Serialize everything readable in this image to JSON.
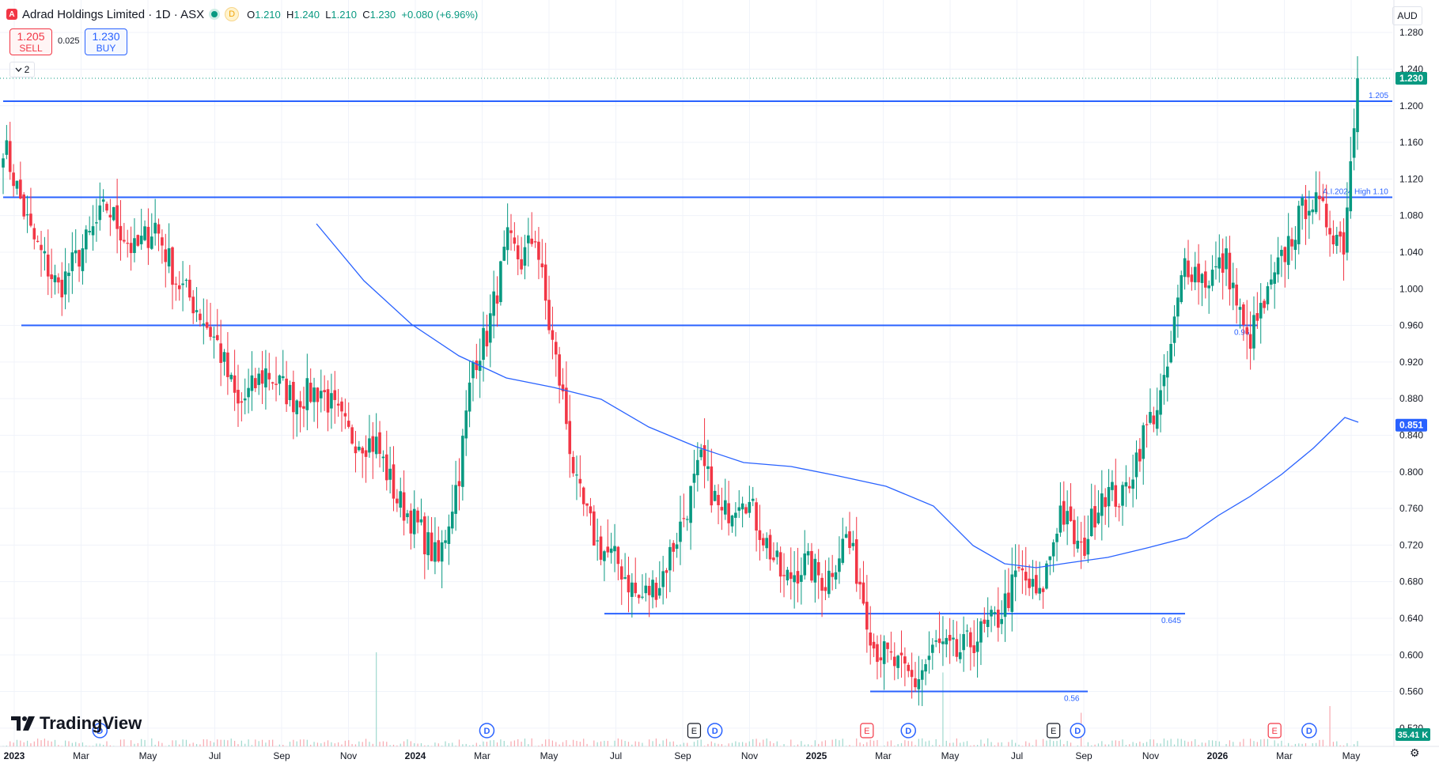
{
  "header": {
    "logo_letter": "A",
    "title": "Adrad Holdings Limited · 1D · ASX",
    "d_badge": "D",
    "open_label": "O",
    "open": "1.210",
    "high_label": "H",
    "high": "1.240",
    "low_label": "L",
    "low": "1.210",
    "close_label": "C",
    "close": "1.230",
    "change": "+0.080 (+6.96%)"
  },
  "trade": {
    "sell_price": "1.205",
    "sell_label": "SELL",
    "spread": "0.025",
    "buy_price": "1.230",
    "buy_label": "BUY"
  },
  "indicator_toggle": {
    "icon": "chevron-down-icon",
    "count": "2"
  },
  "currency": "AUD",
  "brand": "TradingView",
  "colors": {
    "up": "#089981",
    "down": "#f23645",
    "line": "#2962ff",
    "ma": "#2962ff"
  },
  "chart_data": {
    "type": "candlestick",
    "symbol": "Adrad Holdings Limited",
    "interval": "1D",
    "exchange": "ASX",
    "y_axis": {
      "min": 0.5,
      "max": 1.3,
      "ticks": [
        "1.280",
        "1.240",
        "1.200",
        "1.160",
        "1.120",
        "1.080",
        "1.040",
        "1.000",
        "0.960",
        "0.920",
        "0.880",
        "0.840",
        "0.800",
        "0.760",
        "0.720",
        "0.680",
        "0.640",
        "0.600",
        "0.560",
        "0.520"
      ]
    },
    "x_axis": {
      "labels": [
        "2023",
        "Mar",
        "May",
        "Jul",
        "Sep",
        "Nov",
        "2024",
        "Mar",
        "May",
        "Jul",
        "Sep",
        "Nov",
        "2025",
        "Mar",
        "May",
        "Jul",
        "Sep",
        "Nov",
        "2026",
        "Mar",
        "May"
      ]
    },
    "price_badges": {
      "last": "1.230",
      "ma": "0.851",
      "volume": "35.41 K"
    },
    "horizontal_levels": [
      {
        "value": 1.205,
        "label": "1.205"
      },
      {
        "value": 1.1,
        "label": "A.I.2024 High 1.10"
      },
      {
        "value": 0.96,
        "label": "0.96"
      },
      {
        "value": 0.645,
        "label": "0.645"
      },
      {
        "value": 0.56,
        "label": "0.56"
      }
    ],
    "close_path": [
      {
        "t": 0,
        "c": 1.16
      },
      {
        "t": 8,
        "c": 1.06
      },
      {
        "t": 16,
        "c": 1.0
      },
      {
        "t": 24,
        "c": 1.05
      },
      {
        "t": 30,
        "c": 1.09
      },
      {
        "t": 38,
        "c": 1.04
      },
      {
        "t": 44,
        "c": 1.07
      },
      {
        "t": 50,
        "c": 1.01
      },
      {
        "t": 56,
        "c": 0.98
      },
      {
        "t": 62,
        "c": 0.94
      },
      {
        "t": 68,
        "c": 0.87
      },
      {
        "t": 76,
        "c": 0.91
      },
      {
        "t": 84,
        "c": 0.88
      },
      {
        "t": 92,
        "c": 0.89
      },
      {
        "t": 100,
        "c": 0.84
      },
      {
        "t": 108,
        "c": 0.83
      },
      {
        "t": 114,
        "c": 0.77
      },
      {
        "t": 120,
        "c": 0.74
      },
      {
        "t": 126,
        "c": 0.7
      },
      {
        "t": 132,
        "c": 0.8
      },
      {
        "t": 136,
        "c": 0.92
      },
      {
        "t": 140,
        "c": 0.95
      },
      {
        "t": 146,
        "c": 1.05
      },
      {
        "t": 150,
        "c": 1.03
      },
      {
        "t": 154,
        "c": 1.06
      },
      {
        "t": 158,
        "c": 0.96
      },
      {
        "t": 162,
        "c": 0.88
      },
      {
        "t": 166,
        "c": 0.78
      },
      {
        "t": 172,
        "c": 0.72
      },
      {
        "t": 178,
        "c": 0.7
      },
      {
        "t": 184,
        "c": 0.66
      },
      {
        "t": 190,
        "c": 0.68
      },
      {
        "t": 196,
        "c": 0.74
      },
      {
        "t": 202,
        "c": 0.81
      },
      {
        "t": 208,
        "c": 0.75
      },
      {
        "t": 214,
        "c": 0.78
      },
      {
        "t": 220,
        "c": 0.73
      },
      {
        "t": 226,
        "c": 0.68
      },
      {
        "t": 232,
        "c": 0.7
      },
      {
        "t": 238,
        "c": 0.68
      },
      {
        "t": 244,
        "c": 0.73
      },
      {
        "t": 248,
        "c": 0.68
      },
      {
        "t": 252,
        "c": 0.61
      },
      {
        "t": 258,
        "c": 0.59
      },
      {
        "t": 264,
        "c": 0.57
      },
      {
        "t": 270,
        "c": 0.61
      },
      {
        "t": 276,
        "c": 0.6
      },
      {
        "t": 282,
        "c": 0.62
      },
      {
        "t": 288,
        "c": 0.64
      },
      {
        "t": 294,
        "c": 0.69
      },
      {
        "t": 300,
        "c": 0.66
      },
      {
        "t": 306,
        "c": 0.76
      },
      {
        "t": 312,
        "c": 0.71
      },
      {
        "t": 318,
        "c": 0.78
      },
      {
        "t": 324,
        "c": 0.77
      },
      {
        "t": 330,
        "c": 0.84
      },
      {
        "t": 336,
        "c": 0.89
      },
      {
        "t": 342,
        "c": 1.03
      },
      {
        "t": 348,
        "c": 1.01
      },
      {
        "t": 354,
        "c": 1.03
      },
      {
        "t": 360,
        "c": 0.94
      },
      {
        "t": 366,
        "c": 0.99
      },
      {
        "t": 372,
        "c": 1.05
      },
      {
        "t": 378,
        "c": 1.1
      },
      {
        "t": 384,
        "c": 1.07
      },
      {
        "t": 388,
        "c": 1.05
      },
      {
        "t": 392,
        "c": 1.23
      }
    ],
    "volume_spikes": [
      {
        "t": 108,
        "v": 0.7
      },
      {
        "t": 272,
        "v": 0.55
      },
      {
        "t": 312,
        "v": 0.25
      },
      {
        "t": 384,
        "v": 0.3
      }
    ],
    "events": [
      {
        "t": 28,
        "type": "D"
      },
      {
        "t": 140,
        "type": "D"
      },
      {
        "t": 200,
        "type": "E"
      },
      {
        "t": 206,
        "type": "D"
      },
      {
        "t": 250,
        "type": "E"
      },
      {
        "t": 262,
        "type": "D"
      },
      {
        "t": 304,
        "type": "E"
      },
      {
        "t": 311,
        "type": "D"
      },
      {
        "t": 368,
        "type": "E"
      },
      {
        "t": 378,
        "type": "D"
      }
    ]
  }
}
